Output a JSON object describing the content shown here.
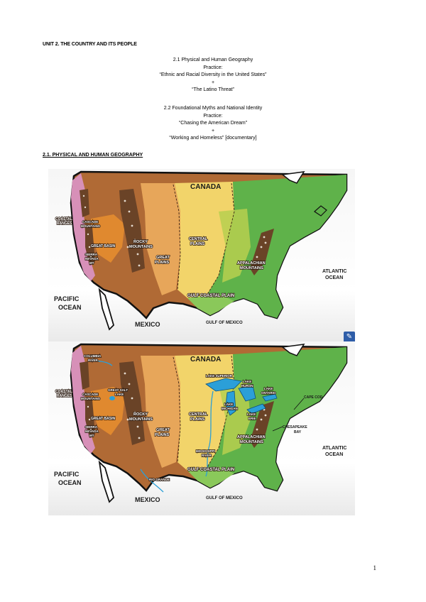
{
  "unit_title": "UNIT 2. THE COUNTRY AND ITS PEOPLE",
  "block1": {
    "line1": "2.1 Physical and Human Geography",
    "line2": "Practice:",
    "line3": "“Ethnic and Racial Diversity in the United States”",
    "line4": "+",
    "line5": "“The Latino Threat”"
  },
  "block2": {
    "line1": "2.2 Foundational Myths and National Identity",
    "line2": "Practice:",
    "line3": "“Chasing the American Dream”",
    "line4": "+",
    "line5": "“Working and Homeless” [documentary]"
  },
  "section_heading": "2.1. PHYSICAL AND HUMAN GEOGRAPHY",
  "map1": {
    "labels": {
      "canada": "CANADA",
      "coastal": "COASTAL",
      "ranges": "RANGES",
      "cascade": "CASCADE",
      "mountains": "MOUNTAINS",
      "great_basin": "GREAT BASIN",
      "rocky": "ROCKY",
      "rocky2": "MOUNTAINS",
      "sierra": "SIERRA",
      "nevada": "NEVADA",
      "mt": "MT",
      "great": "GREAT",
      "plains": "PLAINS",
      "central": "CENTRAL",
      "central2": "PLAINS",
      "appalachian": "APPALACHIAN",
      "appalachian2": "MOUNTAINS",
      "gulf_coastal": "GULF COASTAL PLAIN",
      "atlantic": "ATLANTIC",
      "ocean": "OCEAN",
      "pacific": "PACIFIC",
      "pacific_ocean": "OCEAN",
      "mexico": "MEXICO",
      "gulf_of_mexico": "GULF OF MEXICO"
    }
  },
  "map2": {
    "labels": {
      "canada": "CANADA",
      "columbia": "COLUMBIA",
      "river": "RIVER",
      "coastal": "COASTAL",
      "ranges": "RANGES",
      "cascade": "CASCADE",
      "mountains": "MOUNTAINS",
      "great_salt": "GREAT SALT",
      "lake": "LAKE",
      "great_basin": "GREAT BASIN",
      "rocky": "ROCKY",
      "rocky2": "MOUNTAINS",
      "sierra": "SIERRA",
      "nevada": "NEVADA",
      "mt": "MT",
      "great": "GREAT",
      "plains": "PLAINS",
      "lake_superior": "LAKE SUPERIOR",
      "lake_huron": "LAKE",
      "huron": "HURON",
      "lake_ontario": "LAKE",
      "ontario": "ONTARIO",
      "lake_michigan": "LAKE",
      "michigan": "MICHIGAN",
      "lake_erie": "LAKE",
      "erie": "ERIE",
      "central": "CENTRAL",
      "central2": "PLAINS",
      "cape_cod": "CAPE COD",
      "chesapeake": "CHESAPEAKE",
      "bay": "BAY",
      "appalachian": "APPALACHIAN",
      "appalachian2": "MOUNTAINS",
      "mississippi": "MISSISSIPPI",
      "mississippi_river": "RIVER",
      "gulf_coastal": "GULF COASTAL PLAIN",
      "rio_grande": "RIO GRANDE",
      "atlantic": "ATLANTIC",
      "ocean": "OCEAN",
      "pacific": "PACIFIC",
      "pacific_ocean": "OCEAN",
      "mexico": "MEXICO",
      "gulf_of_mexico": "GULF OF MEXICO"
    }
  },
  "page_number": "1",
  "colors": {
    "pacific_coast": "#d790b8",
    "west_brown": "#b06a35",
    "basin_orange": "#e0892f",
    "plains_tan": "#e7a65a",
    "central_yellow": "#f2d46a",
    "east_green": "#5fb24a",
    "water_blue": "#2b9fd8"
  }
}
